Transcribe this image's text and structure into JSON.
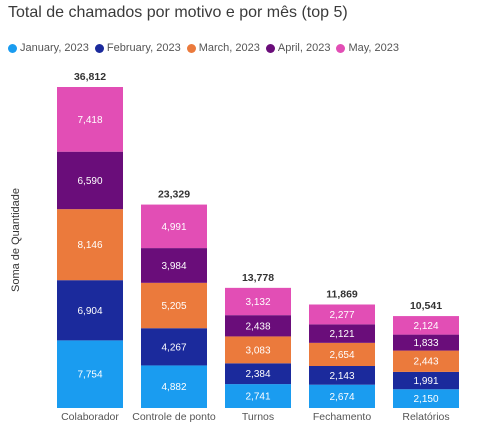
{
  "chart_data": {
    "type": "bar",
    "stacked": true,
    "title": "Total de chamados por motivo e por mês (top 5)",
    "ylabel": "Soma de Quantidade",
    "xlabel": "",
    "categories": [
      "Colaborador",
      "Controle de ponto",
      "Turnos",
      "Fechamento",
      "Relatórios"
    ],
    "series": [
      {
        "name": "January, 2023",
        "color": "#1a9cf0",
        "values": [
          7754,
          4882,
          2741,
          2674,
          2150
        ],
        "labels": [
          "7,754",
          "4,882",
          "2,741",
          "2,674",
          "2,150"
        ]
      },
      {
        "name": "February, 2023",
        "color": "#1b2a9c",
        "values": [
          6904,
          4267,
          2384,
          2143,
          1991
        ],
        "labels": [
          "6,904",
          "4,267",
          "2,384",
          "2,143",
          "1,991"
        ]
      },
      {
        "name": "March, 2023",
        "color": "#eb7a3c",
        "values": [
          8146,
          5205,
          3083,
          2654,
          2443
        ],
        "labels": [
          "8,146",
          "5,205",
          "3,083",
          "2,654",
          "2,443"
        ]
      },
      {
        "name": "April, 2023",
        "color": "#6a0d7a",
        "values": [
          6590,
          3984,
          2438,
          2121,
          1833
        ],
        "labels": [
          "6,590",
          "3,984",
          "2,438",
          "2,121",
          "1,833"
        ]
      },
      {
        "name": "May, 2023",
        "color": "#e24eb5",
        "values": [
          7418,
          4991,
          3132,
          2277,
          2124
        ],
        "labels": [
          "7,418",
          "4,991",
          "3,132",
          "2,277",
          "2,124"
        ]
      }
    ],
    "totals": [
      36812,
      23329,
      13778,
      11869,
      10541
    ],
    "total_labels": [
      "36,812",
      "23,329",
      "13,778",
      "11,869",
      "10,541"
    ],
    "legend_position": "top-left",
    "grid": false
  }
}
